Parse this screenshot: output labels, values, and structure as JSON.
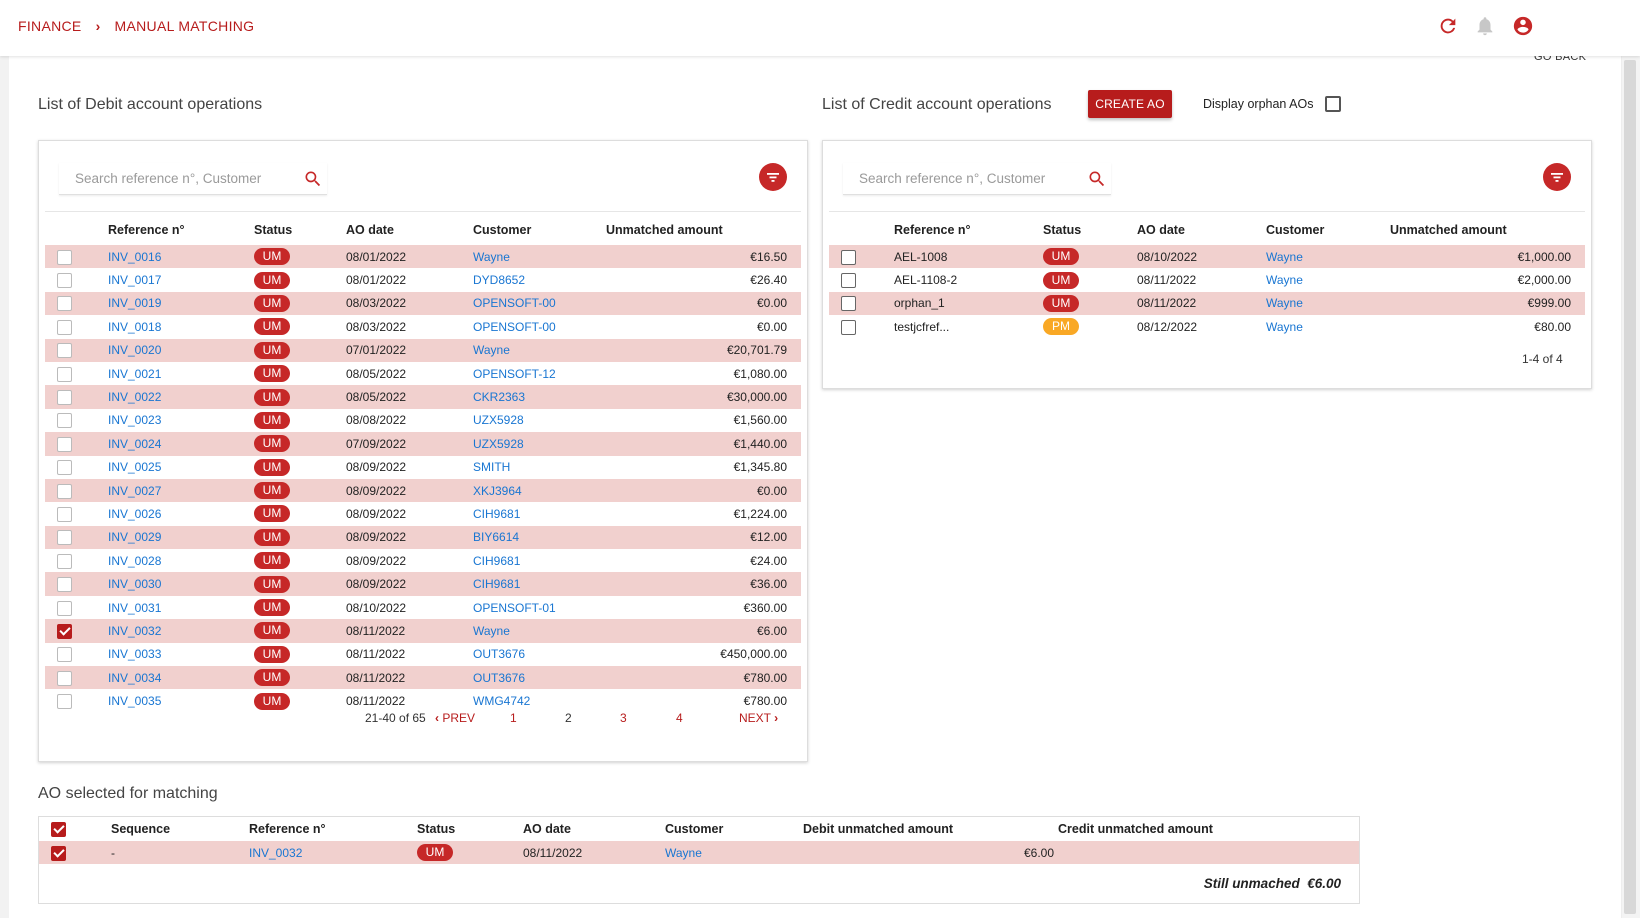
{
  "breadcrumb": {
    "root": "FINANCE",
    "current": "MANUAL MATCHING"
  },
  "go_back": "GO BACK",
  "debit": {
    "title": "List of Debit account operations",
    "search_placeholder": "Search reference n°, Customer",
    "columns": [
      "Reference n°",
      "Status",
      "AO date",
      "Customer",
      "Unmatched amount"
    ],
    "rows": [
      {
        "ref": "INV_0016",
        "status": "UM",
        "date": "08/01/2022",
        "customer": "Wayne",
        "amount": "€16.50",
        "checked": false
      },
      {
        "ref": "INV_0017",
        "status": "UM",
        "date": "08/01/2022",
        "customer": "DYD8652",
        "amount": "€26.40",
        "checked": false
      },
      {
        "ref": "INV_0019",
        "status": "UM",
        "date": "08/03/2022",
        "customer": "OPENSOFT-00",
        "amount": "€0.00",
        "checked": false
      },
      {
        "ref": "INV_0018",
        "status": "UM",
        "date": "08/03/2022",
        "customer": "OPENSOFT-00",
        "amount": "€0.00",
        "checked": false
      },
      {
        "ref": "INV_0020",
        "status": "UM",
        "date": "07/01/2022",
        "customer": "Wayne",
        "amount": "€20,701.79",
        "checked": false
      },
      {
        "ref": "INV_0021",
        "status": "UM",
        "date": "08/05/2022",
        "customer": "OPENSOFT-12",
        "amount": "€1,080.00",
        "checked": false
      },
      {
        "ref": "INV_0022",
        "status": "UM",
        "date": "08/05/2022",
        "customer": "CKR2363",
        "amount": "€30,000.00",
        "checked": false
      },
      {
        "ref": "INV_0023",
        "status": "UM",
        "date": "08/08/2022",
        "customer": "UZX5928",
        "amount": "€1,560.00",
        "checked": false
      },
      {
        "ref": "INV_0024",
        "status": "UM",
        "date": "07/09/2022",
        "customer": "UZX5928",
        "amount": "€1,440.00",
        "checked": false
      },
      {
        "ref": "INV_0025",
        "status": "UM",
        "date": "08/09/2022",
        "customer": "SMITH",
        "amount": "€1,345.80",
        "checked": false
      },
      {
        "ref": "INV_0027",
        "status": "UM",
        "date": "08/09/2022",
        "customer": "XKJ3964",
        "amount": "€0.00",
        "checked": false
      },
      {
        "ref": "INV_0026",
        "status": "UM",
        "date": "08/09/2022",
        "customer": "CIH9681",
        "amount": "€1,224.00",
        "checked": false
      },
      {
        "ref": "INV_0029",
        "status": "UM",
        "date": "08/09/2022",
        "customer": "BIY6614",
        "amount": "€12.00",
        "checked": false
      },
      {
        "ref": "INV_0028",
        "status": "UM",
        "date": "08/09/2022",
        "customer": "CIH9681",
        "amount": "€24.00",
        "checked": false
      },
      {
        "ref": "INV_0030",
        "status": "UM",
        "date": "08/09/2022",
        "customer": "CIH9681",
        "amount": "€36.00",
        "checked": false
      },
      {
        "ref": "INV_0031",
        "status": "UM",
        "date": "08/10/2022",
        "customer": "OPENSOFT-01",
        "amount": "€360.00",
        "checked": false
      },
      {
        "ref": "INV_0032",
        "status": "UM",
        "date": "08/11/2022",
        "customer": "Wayne",
        "amount": "€6.00",
        "checked": true
      },
      {
        "ref": "INV_0033",
        "status": "UM",
        "date": "08/11/2022",
        "customer": "OUT3676",
        "amount": "€450,000.00",
        "checked": false
      },
      {
        "ref": "INV_0034",
        "status": "UM",
        "date": "08/11/2022",
        "customer": "OUT3676",
        "amount": "€780.00",
        "checked": false
      },
      {
        "ref": "INV_0035",
        "status": "UM",
        "date": "08/11/2022",
        "customer": "WMG4742",
        "amount": "€780.00",
        "checked": false
      }
    ],
    "pagination": {
      "range": "21-40 of 65",
      "prev": "PREV",
      "next": "NEXT",
      "pages": [
        "1",
        "2",
        "3",
        "4"
      ],
      "current_page": "2"
    }
  },
  "credit": {
    "title": "List of Credit account operations",
    "create_label": "CREATE AO",
    "orphan_label": "Display orphan AOs",
    "search_placeholder": "Search reference n°, Customer",
    "columns": [
      "Reference n°",
      "Status",
      "AO date",
      "Customer",
      "Unmatched amount"
    ],
    "rows": [
      {
        "ref": "AEL-1008",
        "status": "UM",
        "date": "08/10/2022",
        "customer": "Wayne",
        "amount": "€1,000.00"
      },
      {
        "ref": "AEL-1108-2",
        "status": "UM",
        "date": "08/11/2022",
        "customer": "Wayne",
        "amount": "€2,000.00"
      },
      {
        "ref": "orphan_1",
        "status": "UM",
        "date": "08/11/2022",
        "customer": "Wayne",
        "amount": "€999.00"
      },
      {
        "ref": "testjcfref...",
        "status": "PM",
        "date": "08/12/2022",
        "customer": "Wayne",
        "amount": "€80.00"
      }
    ],
    "pagination": {
      "range": "1-4 of 4"
    }
  },
  "matching": {
    "title": "AO selected for matching",
    "columns": [
      "Sequence",
      "Reference n°",
      "Status",
      "AO date",
      "Customer",
      "Debit unmatched amount",
      "Credit unmatched amount"
    ],
    "rows": [
      {
        "sequence": "-",
        "ref": "INV_0032",
        "status": "UM",
        "date": "08/11/2022",
        "customer": "Wayne",
        "debit": "€6.00",
        "credit": ""
      }
    ],
    "still_unmatched": "Still unmached  €6.00"
  },
  "colors": {
    "accent": "#b71c1c",
    "row_alt": "#f1d0ce",
    "link": "#1976d2",
    "pm_badge": "#f9a825"
  },
  "icons": [
    "refresh-icon",
    "bell-icon",
    "account-icon",
    "search-icon",
    "filter-icon",
    "chevron-left-icon",
    "chevron-right-icon"
  ]
}
